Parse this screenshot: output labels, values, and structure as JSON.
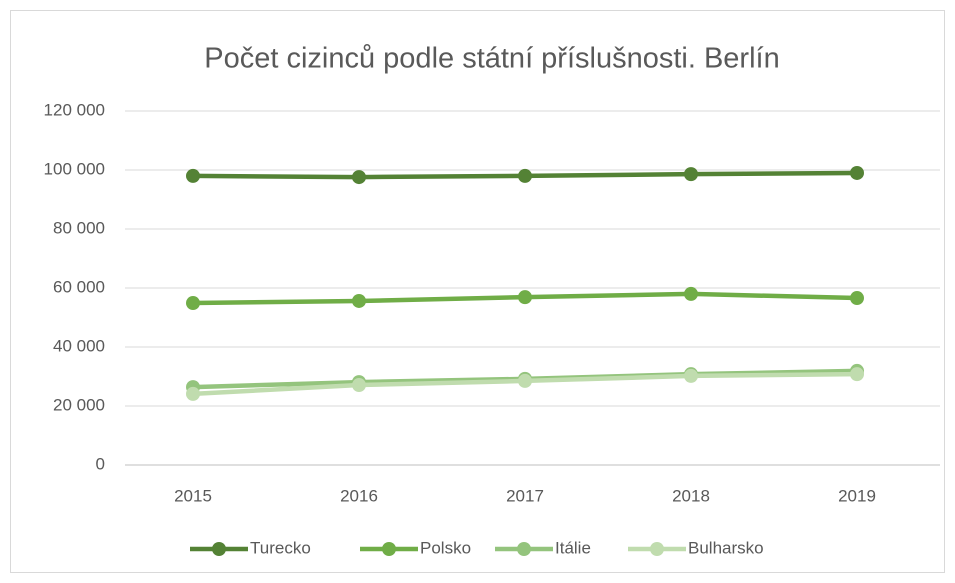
{
  "chart_data": {
    "type": "line",
    "title": "Počet cizinců podle státní příslušnosti. Berlín",
    "categories": [
      "2015",
      "2016",
      "2017",
      "2018",
      "2019"
    ],
    "series": [
      {
        "name": "Turecko",
        "color": "#548235",
        "values": [
          98000,
          97600,
          98000,
          98600,
          99000
        ]
      },
      {
        "name": "Polsko",
        "color": "#70ad47",
        "values": [
          54900,
          55600,
          56900,
          58000,
          56600
        ]
      },
      {
        "name": "Itálie",
        "color": "#94c47d",
        "values": [
          26400,
          28100,
          29200,
          30800,
          31900
        ]
      },
      {
        "name": "Bulharsko",
        "color": "#c0dcae",
        "values": [
          24100,
          27100,
          28500,
          30200,
          30800
        ]
      }
    ],
    "ylim": [
      0,
      120000
    ],
    "yticks": [
      {
        "value": 0,
        "label": "0"
      },
      {
        "value": 20000,
        "label": "20 000"
      },
      {
        "value": 40000,
        "label": "40 000"
      },
      {
        "value": 60000,
        "label": "60 000"
      },
      {
        "value": 80000,
        "label": "80 000"
      },
      {
        "value": 100000,
        "label": "100 000"
      },
      {
        "value": 120000,
        "label": "120 000"
      }
    ],
    "grid": true,
    "legend": "bottom"
  }
}
